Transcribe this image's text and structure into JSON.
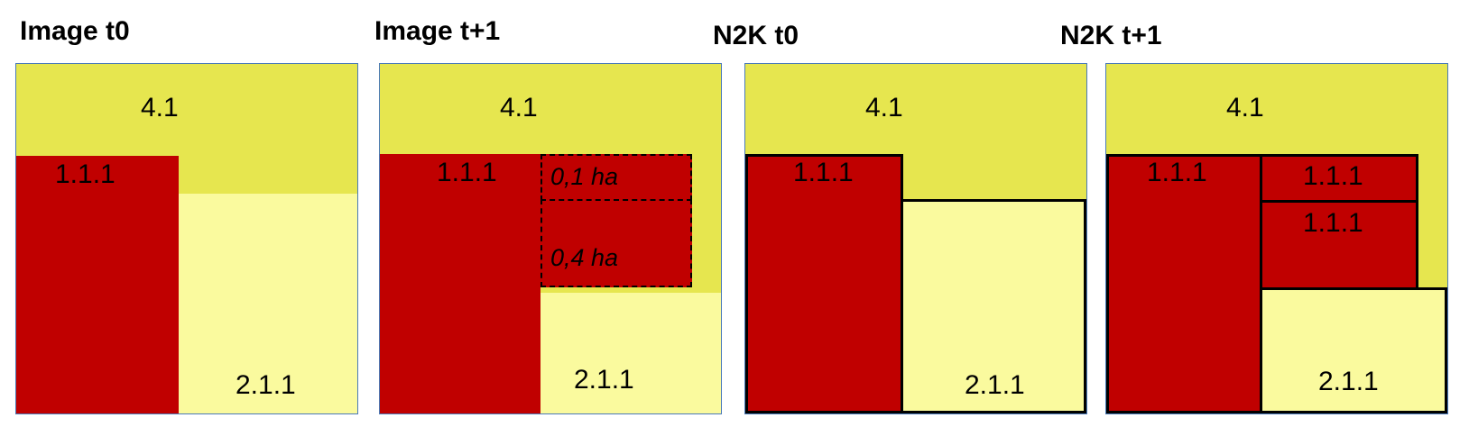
{
  "panels": [
    {
      "title": "Image t0",
      "labels": {
        "a": "4.1",
        "b": "1.1.1",
        "c": "2.1.1"
      }
    },
    {
      "title": "Image t+1",
      "labels": {
        "a": "4.1",
        "b": "1.1.1",
        "c": "0,1 ha",
        "d": "0,4 ha",
        "e": "2.1.1"
      }
    },
    {
      "title": "N2K t0",
      "labels": {
        "a": "4.1",
        "b": "1.1.1",
        "c": "2.1.1"
      }
    },
    {
      "title": "N2K t+1",
      "labels": {
        "a": "4.1",
        "b": "1.1.1",
        "c": "1.1.1",
        "d": "1.1.1",
        "e": "2.1.1"
      }
    }
  ],
  "colors": {
    "class_4_1": "#e6e64f",
    "class_1_1_1": "#c00000",
    "class_2_1_1": "#fafa9e",
    "panel_border": "#4a7ab8"
  }
}
